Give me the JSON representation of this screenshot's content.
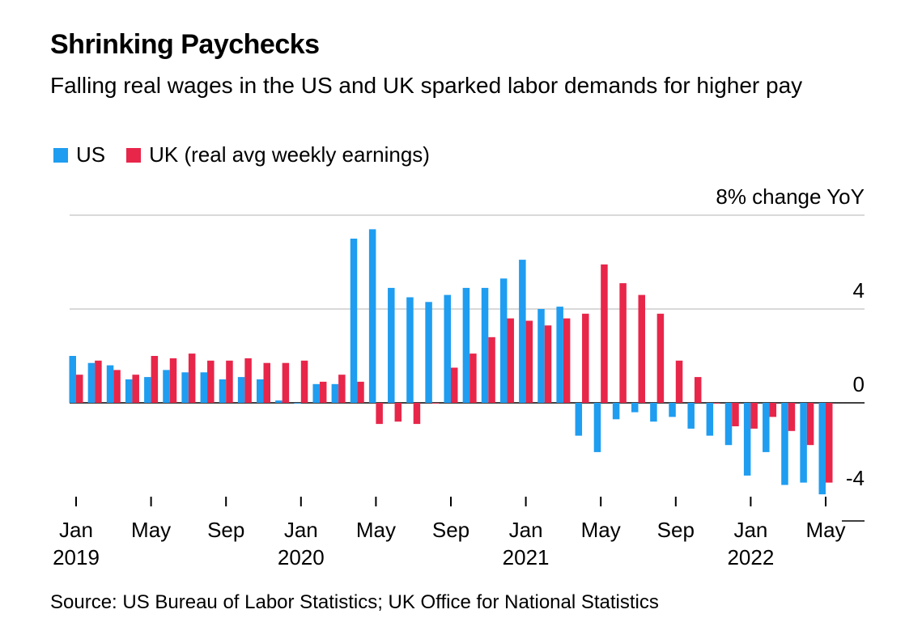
{
  "title": "Shrinking Paychecks",
  "subtitle": "Falling real wages in the US and UK sparked labor demands for higher pay",
  "source": "Source: US Bureau of Labor Statistics; UK Office for National Statistics",
  "colors": {
    "us": "#1f9df0",
    "uk": "#e8264a",
    "grid": "#d9d9d9",
    "zero": "#000000"
  },
  "chart_data": {
    "type": "bar",
    "title": "Shrinking Paychecks",
    "subtitle": "Falling real wages in the US and UK sparked labor demands for higher pay",
    "ylabel": "8% change YoY",
    "ylim": [
      -4,
      8
    ],
    "yticks": [
      {
        "value": 8,
        "label": "8% change YoY"
      },
      {
        "value": 4,
        "label": "4"
      },
      {
        "value": 0,
        "label": "0"
      },
      {
        "value": -4,
        "label": "-4"
      }
    ],
    "grid": true,
    "legend_position": "top-left",
    "x_tick_labels": [
      {
        "index": 0,
        "month": "Jan",
        "year": "2019"
      },
      {
        "index": 4,
        "month": "May",
        "year": ""
      },
      {
        "index": 8,
        "month": "Sep",
        "year": ""
      },
      {
        "index": 12,
        "month": "Jan",
        "year": "2020"
      },
      {
        "index": 16,
        "month": "May",
        "year": ""
      },
      {
        "index": 20,
        "month": "Sep",
        "year": ""
      },
      {
        "index": 24,
        "month": "Jan",
        "year": "2021"
      },
      {
        "index": 28,
        "month": "May",
        "year": ""
      },
      {
        "index": 32,
        "month": "Sep",
        "year": ""
      },
      {
        "index": 36,
        "month": "Jan",
        "year": "2022"
      },
      {
        "index": 40,
        "month": "May",
        "year": ""
      }
    ],
    "categories": [
      "2019-01",
      "2019-02",
      "2019-03",
      "2019-04",
      "2019-05",
      "2019-06",
      "2019-07",
      "2019-08",
      "2019-09",
      "2019-10",
      "2019-11",
      "2019-12",
      "2020-01",
      "2020-02",
      "2020-03",
      "2020-04",
      "2020-05",
      "2020-06",
      "2020-07",
      "2020-08",
      "2020-09",
      "2020-10",
      "2020-11",
      "2020-12",
      "2021-01",
      "2021-02",
      "2021-03",
      "2021-04",
      "2021-05",
      "2021-06",
      "2021-07",
      "2021-08",
      "2021-09",
      "2021-10",
      "2021-11",
      "2021-12",
      "2022-01",
      "2022-02",
      "2022-03",
      "2022-04",
      "2022-05"
    ],
    "series": [
      {
        "name": "US",
        "color": "#1f9df0",
        "values": [
          2.0,
          1.7,
          1.6,
          1.0,
          1.1,
          1.4,
          1.3,
          1.3,
          1.0,
          1.1,
          1.0,
          0.1,
          0.0,
          0.8,
          0.8,
          7.0,
          7.4,
          4.9,
          4.5,
          4.3,
          4.6,
          4.9,
          4.9,
          5.3,
          6.1,
          4.0,
          4.1,
          -1.4,
          -2.1,
          -0.7,
          -0.4,
          -0.8,
          -0.6,
          -1.1,
          -1.4,
          -1.8,
          -3.1,
          -2.1,
          -3.5,
          -3.4,
          -3.9
        ]
      },
      {
        "name": "UK (real avg weekly earnings)",
        "color": "#e8264a",
        "values": [
          1.2,
          1.8,
          1.4,
          1.2,
          2.0,
          1.9,
          2.1,
          1.8,
          1.8,
          1.9,
          1.7,
          1.7,
          1.8,
          0.9,
          1.2,
          0.9,
          -0.9,
          -0.8,
          -0.9,
          0.0,
          1.5,
          2.1,
          2.8,
          3.6,
          3.5,
          3.3,
          3.6,
          3.8,
          5.9,
          5.1,
          4.6,
          3.8,
          1.8,
          1.1,
          0.0,
          -1.0,
          -1.1,
          -0.6,
          -1.2,
          -1.8,
          -3.4
        ]
      }
    ]
  }
}
